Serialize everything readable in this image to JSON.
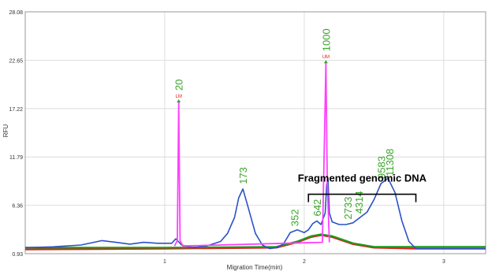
{
  "chart_data": {
    "type": "line",
    "xlabel": "Migration Time(min)",
    "ylabel": "RFU",
    "xlim": [
      0.0,
      3.3
    ],
    "ylim": [
      0.93,
      28.08
    ],
    "xticks": [
      1,
      2,
      3
    ],
    "yticks": [
      0.93,
      6.36,
      11.79,
      17.22,
      22.65,
      28.08
    ],
    "ytick_labels": [
      "0.93",
      "6.36",
      "11.79",
      "17.22",
      "22.65",
      "28.08"
    ],
    "xtick_labels": [
      "1",
      "2",
      "3"
    ],
    "grid": true,
    "colors": {
      "sample": "#2a52c8",
      "marker": "#ff40ff",
      "red": "#e02020",
      "green": "#1a9a1a",
      "peak_label": "#3aa52a",
      "marker_label": "#e02020"
    },
    "series": [
      {
        "key": "sample",
        "x": [
          0.0,
          0.2,
          0.4,
          0.55,
          0.65,
          0.75,
          0.85,
          0.95,
          1.05,
          1.08,
          1.12,
          1.2,
          1.3,
          1.4,
          1.45,
          1.5,
          1.53,
          1.56,
          1.6,
          1.65,
          1.7,
          1.75,
          1.8,
          1.85,
          1.9,
          1.95,
          2.0,
          2.03,
          2.06,
          2.09,
          2.12,
          2.15,
          2.16,
          2.17,
          2.18,
          2.2,
          2.25,
          2.3,
          2.35,
          2.4,
          2.45,
          2.5,
          2.55,
          2.6,
          2.65,
          2.7,
          2.75,
          2.8,
          3.0,
          3.3
        ],
        "y": [
          1.6,
          1.7,
          1.9,
          2.4,
          2.2,
          2.0,
          2.2,
          2.1,
          2.1,
          2.6,
          1.9,
          1.6,
          1.8,
          2.3,
          3.2,
          5.0,
          7.2,
          8.2,
          6.0,
          3.2,
          1.9,
          1.5,
          1.6,
          2.0,
          3.3,
          3.6,
          3.3,
          3.6,
          4.3,
          4.6,
          4.2,
          5.5,
          8.6,
          9.3,
          5.5,
          4.5,
          4.2,
          4.2,
          4.4,
          5.0,
          5.6,
          7.0,
          8.8,
          9.4,
          7.8,
          4.6,
          2.3,
          1.5,
          1.5,
          1.5
        ],
        "peak_labels": [
          {
            "text": "173",
            "x": 1.56
          },
          {
            "text": "352",
            "x": 1.93
          },
          {
            "text": "642",
            "x": 2.09
          },
          {
            "text": "2733",
            "x": 2.31
          },
          {
            "text": "4314",
            "x": 2.39
          },
          {
            "text": "9583",
            "x": 2.55
          },
          {
            "text": "11308",
            "x": 2.61
          }
        ]
      },
      {
        "key": "marker",
        "x": [
          1.07,
          1.09,
          1.1,
          1.11,
          1.13,
          2.13,
          2.145,
          2.155,
          2.165,
          2.18
        ],
        "y": [
          1.8,
          2.4,
          18.0,
          2.4,
          1.8,
          2.2,
          14.0,
          22.4,
          9.0,
          2.2
        ],
        "marker_labels": [
          {
            "number": "20",
            "tag": "LM",
            "x": 1.1
          },
          {
            "number": "1000",
            "tag": "UM",
            "x": 2.155
          }
        ]
      },
      {
        "key": "red",
        "x": [
          0.0,
          1.0,
          1.8,
          1.95,
          2.05,
          2.12,
          2.2,
          2.35,
          2.5,
          2.8,
          3.3
        ],
        "y": [
          1.4,
          1.5,
          1.6,
          2.2,
          2.8,
          3.0,
          2.8,
          2.0,
          1.6,
          1.5,
          1.5
        ]
      },
      {
        "key": "green",
        "x": [
          0.0,
          1.0,
          1.8,
          1.95,
          2.05,
          2.12,
          2.2,
          2.35,
          2.5,
          2.8,
          3.3
        ],
        "y": [
          1.6,
          1.6,
          1.7,
          2.3,
          2.9,
          3.1,
          2.9,
          2.1,
          1.7,
          1.7,
          1.7
        ]
      }
    ],
    "annotations": [
      {
        "text": "Fragmented genomic DNA",
        "bracket_x": [
          2.03,
          2.8
        ],
        "bracket_y": 7.6
      }
    ]
  }
}
